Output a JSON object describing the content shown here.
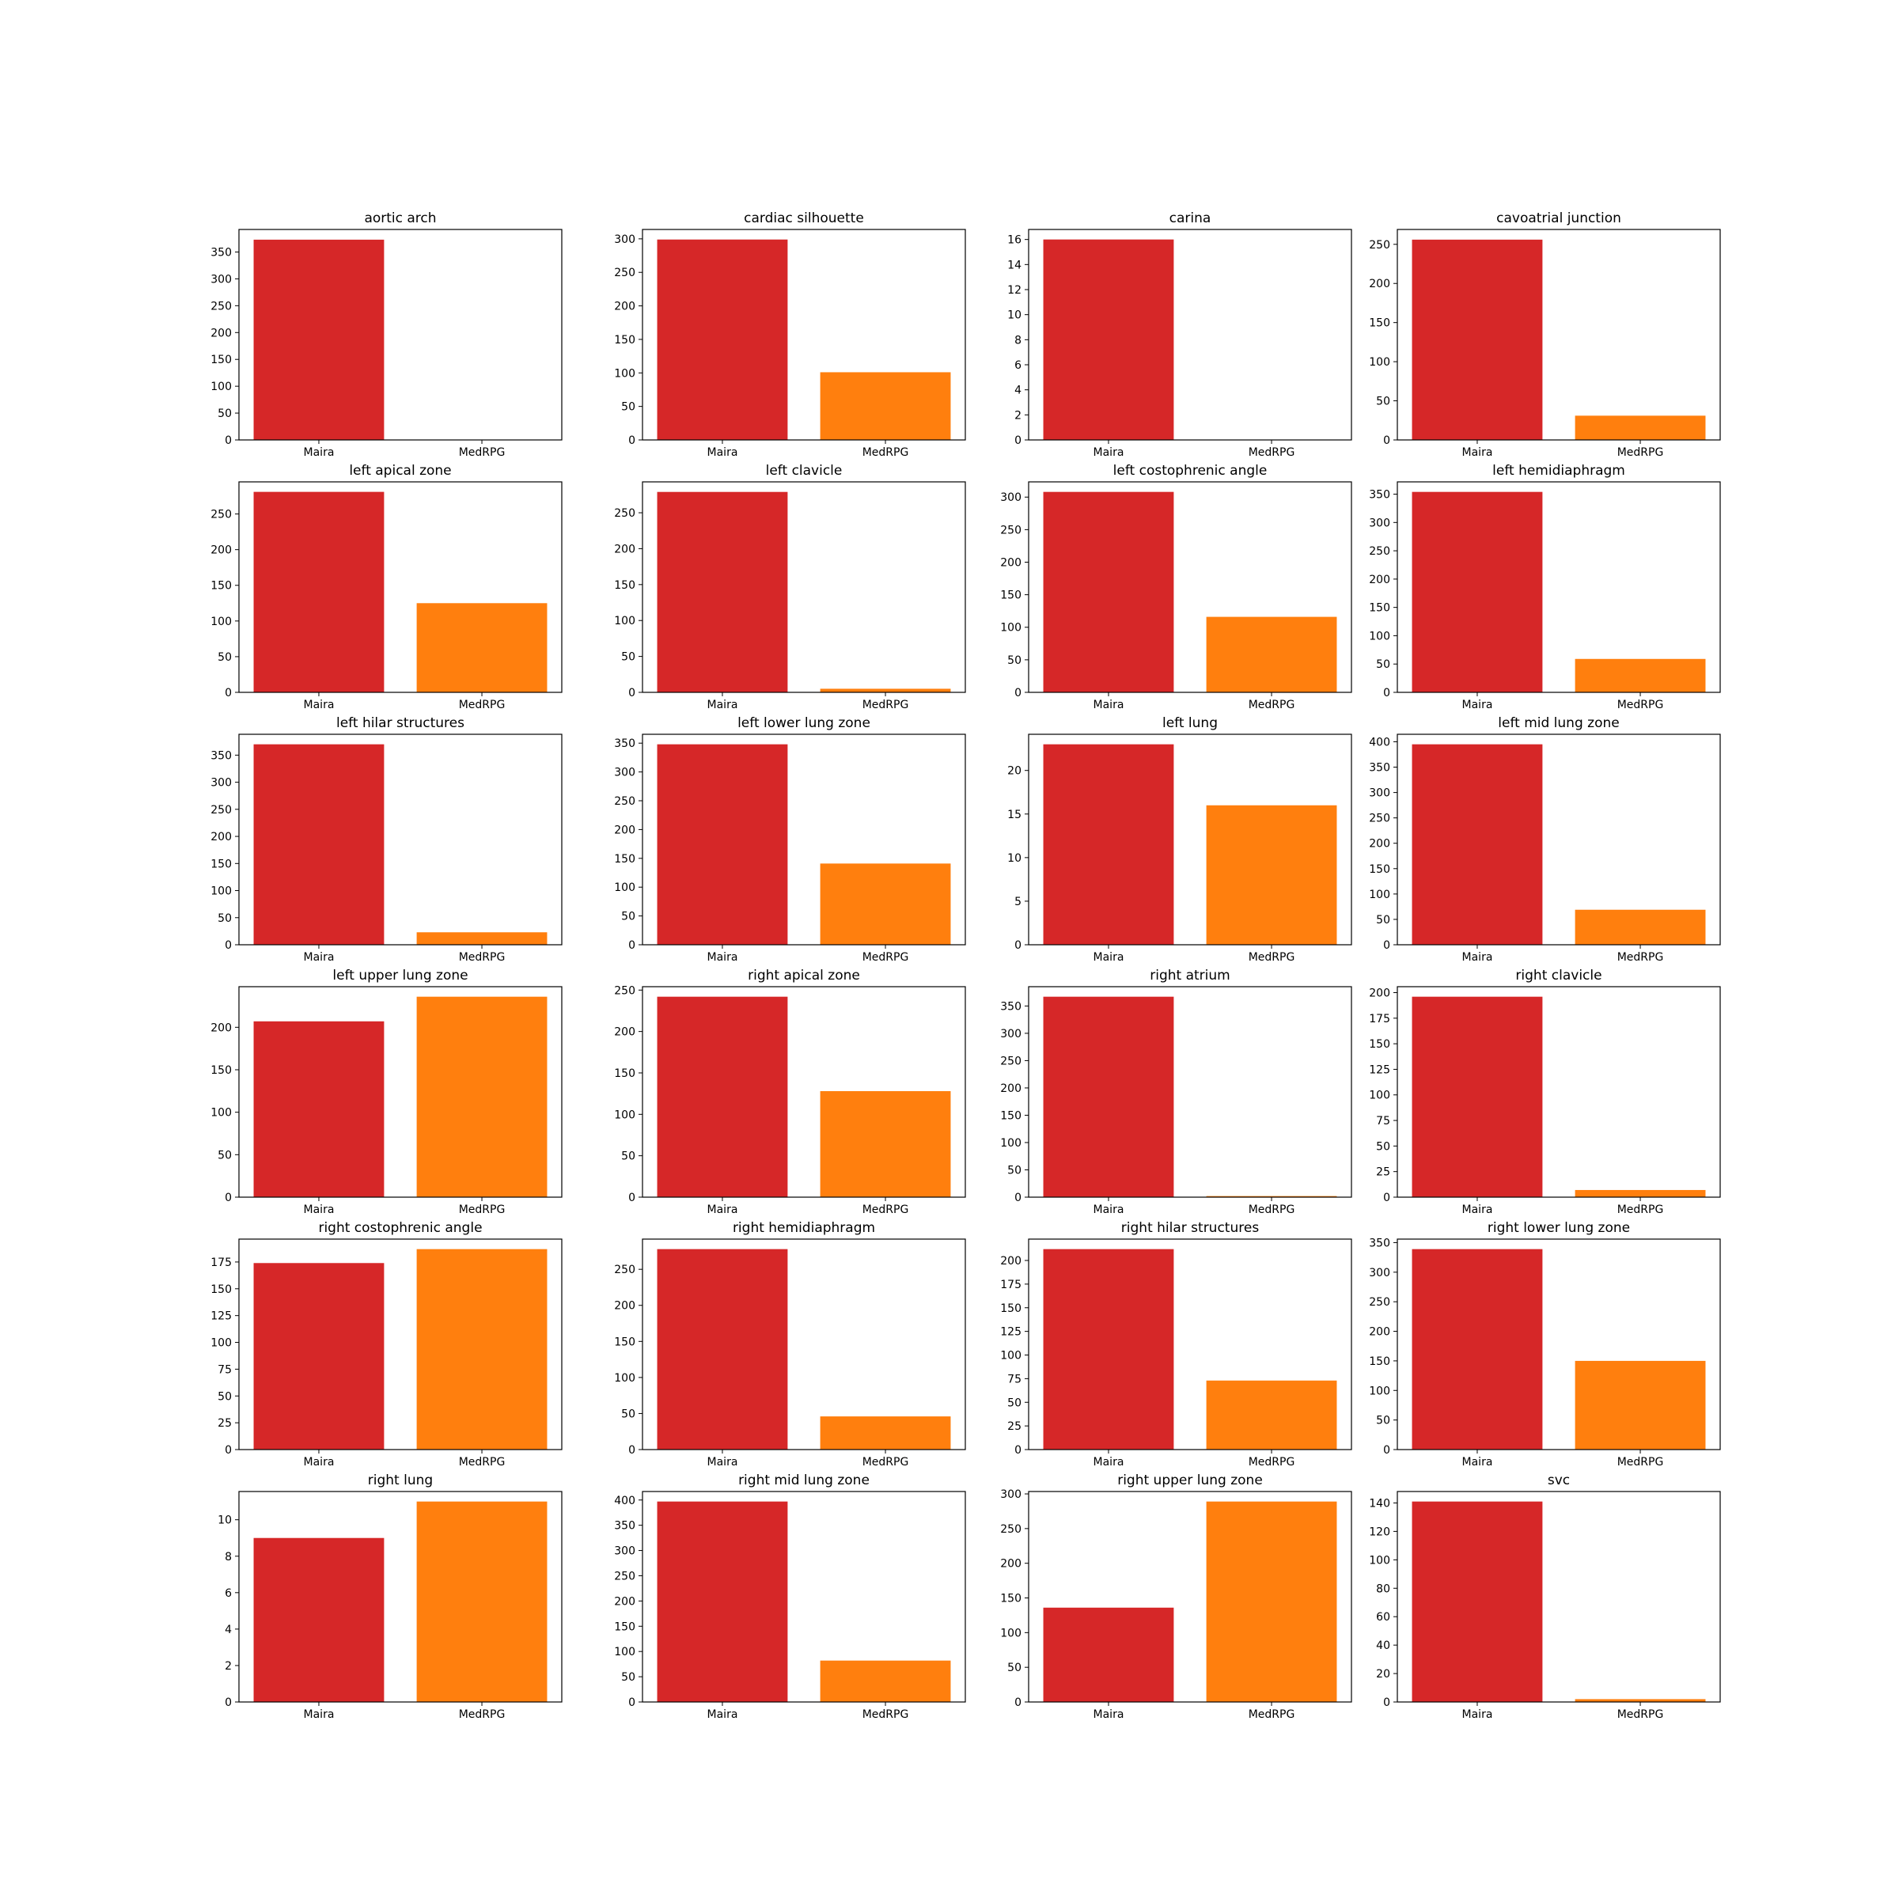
{
  "chart_data": [
    {
      "type": "bar",
      "title": "aortic arch",
      "categories": [
        "Maira",
        "MedRPG"
      ],
      "values": [
        373,
        0
      ],
      "colors": [
        "#d62728",
        "#ff7f0e"
      ],
      "ylim": [
        0,
        392
      ],
      "yticks": [
        0,
        50,
        100,
        150,
        200,
        250,
        300,
        350
      ]
    },
    {
      "type": "bar",
      "title": "cardiac silhouette",
      "categories": [
        "Maira",
        "MedRPG"
      ],
      "values": [
        299,
        101
      ],
      "colors": [
        "#d62728",
        "#ff7f0e"
      ],
      "ylim": [
        0,
        314
      ],
      "yticks": [
        0,
        50,
        100,
        150,
        200,
        250,
        300
      ]
    },
    {
      "type": "bar",
      "title": "carina",
      "categories": [
        "Maira",
        "MedRPG"
      ],
      "values": [
        16,
        0
      ],
      "colors": [
        "#d62728",
        "#ff7f0e"
      ],
      "ylim": [
        0,
        16.8
      ],
      "yticks": [
        0,
        2,
        4,
        6,
        8,
        10,
        12,
        14,
        16
      ]
    },
    {
      "type": "bar",
      "title": "cavoatrial junction",
      "categories": [
        "Maira",
        "MedRPG"
      ],
      "values": [
        256,
        31
      ],
      "colors": [
        "#d62728",
        "#ff7f0e"
      ],
      "ylim": [
        0,
        269
      ],
      "yticks": [
        0,
        50,
        100,
        150,
        200,
        250
      ]
    },
    {
      "type": "bar",
      "title": "left apical zone",
      "categories": [
        "Maira",
        "MedRPG"
      ],
      "values": [
        281,
        125
      ],
      "colors": [
        "#d62728",
        "#ff7f0e"
      ],
      "ylim": [
        0,
        295
      ],
      "yticks": [
        0,
        50,
        100,
        150,
        200,
        250
      ]
    },
    {
      "type": "bar",
      "title": "left clavicle",
      "categories": [
        "Maira",
        "MedRPG"
      ],
      "values": [
        279,
        5
      ],
      "colors": [
        "#d62728",
        "#ff7f0e"
      ],
      "ylim": [
        0,
        293
      ],
      "yticks": [
        0,
        50,
        100,
        150,
        200,
        250
      ]
    },
    {
      "type": "bar",
      "title": "left costophrenic angle",
      "categories": [
        "Maira",
        "MedRPG"
      ],
      "values": [
        308,
        116
      ],
      "colors": [
        "#d62728",
        "#ff7f0e"
      ],
      "ylim": [
        0,
        323.4
      ],
      "yticks": [
        0,
        50,
        100,
        150,
        200,
        250,
        300
      ]
    },
    {
      "type": "bar",
      "title": "left hemidiaphragm",
      "categories": [
        "Maira",
        "MedRPG"
      ],
      "values": [
        354,
        59
      ],
      "colors": [
        "#d62728",
        "#ff7f0e"
      ],
      "ylim": [
        0,
        371.7
      ],
      "yticks": [
        0,
        50,
        100,
        150,
        200,
        250,
        300,
        350
      ]
    },
    {
      "type": "bar",
      "title": "left hilar structures",
      "categories": [
        "Maira",
        "MedRPG"
      ],
      "values": [
        370,
        23
      ],
      "colors": [
        "#d62728",
        "#ff7f0e"
      ],
      "ylim": [
        0,
        388.5
      ],
      "yticks": [
        0,
        50,
        100,
        150,
        200,
        250,
        300,
        350
      ]
    },
    {
      "type": "bar",
      "title": "left lower lung zone",
      "categories": [
        "Maira",
        "MedRPG"
      ],
      "values": [
        348,
        141
      ],
      "colors": [
        "#d62728",
        "#ff7f0e"
      ],
      "ylim": [
        0,
        365.4
      ],
      "yticks": [
        0,
        50,
        100,
        150,
        200,
        250,
        300,
        350
      ]
    },
    {
      "type": "bar",
      "title": "left lung",
      "categories": [
        "Maira",
        "MedRPG"
      ],
      "values": [
        23,
        16
      ],
      "colors": [
        "#d62728",
        "#ff7f0e"
      ],
      "ylim": [
        0,
        24.15
      ],
      "yticks": [
        0,
        5,
        10,
        15,
        20
      ]
    },
    {
      "type": "bar",
      "title": "left mid lung zone",
      "categories": [
        "Maira",
        "MedRPG"
      ],
      "values": [
        395,
        69
      ],
      "colors": [
        "#d62728",
        "#ff7f0e"
      ],
      "ylim": [
        0,
        414.75
      ],
      "yticks": [
        0,
        50,
        100,
        150,
        200,
        250,
        300,
        350,
        400
      ]
    },
    {
      "type": "bar",
      "title": "left upper lung zone",
      "categories": [
        "Maira",
        "MedRPG"
      ],
      "values": [
        207,
        236
      ],
      "colors": [
        "#d62728",
        "#ff7f0e"
      ],
      "ylim": [
        0,
        247.8
      ],
      "yticks": [
        0,
        50,
        100,
        150,
        200
      ]
    },
    {
      "type": "bar",
      "title": "right apical zone",
      "categories": [
        "Maira",
        "MedRPG"
      ],
      "values": [
        242,
        128
      ],
      "colors": [
        "#d62728",
        "#ff7f0e"
      ],
      "ylim": [
        0,
        254.1
      ],
      "yticks": [
        0,
        50,
        100,
        150,
        200,
        250
      ]
    },
    {
      "type": "bar",
      "title": "right atrium",
      "categories": [
        "Maira",
        "MedRPG"
      ],
      "values": [
        367,
        2
      ],
      "colors": [
        "#d62728",
        "#ff7f0e"
      ],
      "ylim": [
        0,
        385.35
      ],
      "yticks": [
        0,
        50,
        100,
        150,
        200,
        250,
        300,
        350
      ]
    },
    {
      "type": "bar",
      "title": "right clavicle",
      "categories": [
        "Maira",
        "MedRPG"
      ],
      "values": [
        196,
        7
      ],
      "colors": [
        "#d62728",
        "#ff7f0e"
      ],
      "ylim": [
        0,
        205.8
      ],
      "yticks": [
        0,
        25,
        50,
        75,
        100,
        125,
        150,
        175,
        200
      ]
    },
    {
      "type": "bar",
      "title": "right costophrenic angle",
      "categories": [
        "Maira",
        "MedRPG"
      ],
      "values": [
        174,
        187
      ],
      "colors": [
        "#d62728",
        "#ff7f0e"
      ],
      "ylim": [
        0,
        196.35
      ],
      "yticks": [
        0,
        25,
        50,
        75,
        100,
        125,
        150,
        175
      ]
    },
    {
      "type": "bar",
      "title": "right hemidiaphragm",
      "categories": [
        "Maira",
        "MedRPG"
      ],
      "values": [
        278,
        46
      ],
      "colors": [
        "#d62728",
        "#ff7f0e"
      ],
      "ylim": [
        0,
        291.9
      ],
      "yticks": [
        0,
        50,
        100,
        150,
        200,
        250
      ]
    },
    {
      "type": "bar",
      "title": "right hilar structures",
      "categories": [
        "Maira",
        "MedRPG"
      ],
      "values": [
        212,
        73
      ],
      "colors": [
        "#d62728",
        "#ff7f0e"
      ],
      "ylim": [
        0,
        222.6
      ],
      "yticks": [
        0,
        25,
        50,
        75,
        100,
        125,
        150,
        175,
        200
      ]
    },
    {
      "type": "bar",
      "title": "right lower lung zone",
      "categories": [
        "Maira",
        "MedRPG"
      ],
      "values": [
        339,
        150
      ],
      "colors": [
        "#d62728",
        "#ff7f0e"
      ],
      "ylim": [
        0,
        355.95
      ],
      "yticks": [
        0,
        50,
        100,
        150,
        200,
        250,
        300,
        350
      ]
    },
    {
      "type": "bar",
      "title": "right lung",
      "categories": [
        "Maira",
        "MedRPG"
      ],
      "values": [
        9,
        11
      ],
      "colors": [
        "#d62728",
        "#ff7f0e"
      ],
      "ylim": [
        0,
        11.55
      ],
      "yticks": [
        0,
        2,
        4,
        6,
        8,
        10
      ]
    },
    {
      "type": "bar",
      "title": "right mid lung zone",
      "categories": [
        "Maira",
        "MedRPG"
      ],
      "values": [
        397,
        82
      ],
      "colors": [
        "#d62728",
        "#ff7f0e"
      ],
      "ylim": [
        0,
        416.85
      ],
      "yticks": [
        0,
        50,
        100,
        150,
        200,
        250,
        300,
        350,
        400
      ]
    },
    {
      "type": "bar",
      "title": "right upper lung zone",
      "categories": [
        "Maira",
        "MedRPG"
      ],
      "values": [
        136,
        289
      ],
      "colors": [
        "#d62728",
        "#ff7f0e"
      ],
      "ylim": [
        0,
        303.45
      ],
      "yticks": [
        0,
        50,
        100,
        150,
        200,
        250,
        300
      ]
    },
    {
      "type": "bar",
      "title": "svc",
      "categories": [
        "Maira",
        "MedRPG"
      ],
      "values": [
        141,
        2
      ],
      "colors": [
        "#d62728",
        "#ff7f0e"
      ],
      "ylim": [
        0,
        148.05
      ],
      "yticks": [
        0,
        20,
        40,
        60,
        80,
        100,
        120,
        140
      ]
    }
  ]
}
